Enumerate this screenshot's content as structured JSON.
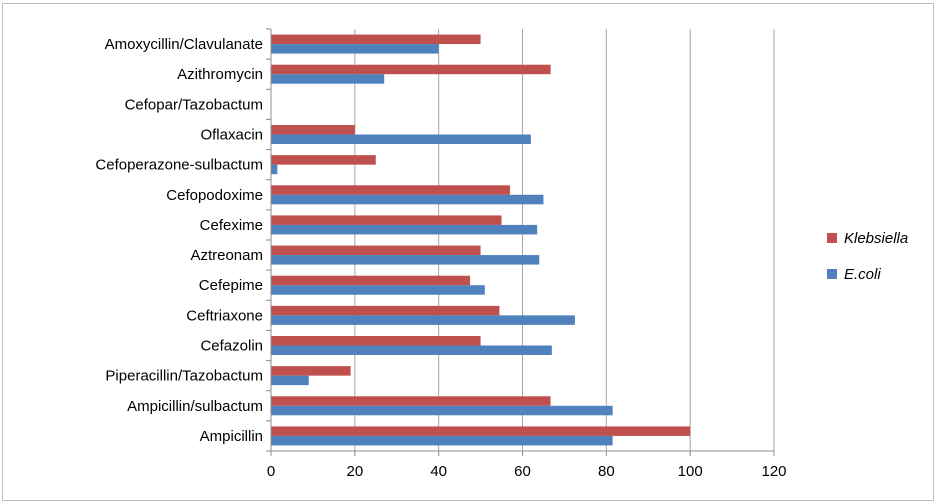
{
  "chart_data": {
    "type": "bar",
    "orientation": "horizontal",
    "title": "",
    "xlabel": "",
    "ylabel": "",
    "xlim": [
      0,
      120
    ],
    "x_ticks": [
      0,
      20,
      40,
      60,
      80,
      100,
      120
    ],
    "grid": "vertical",
    "legend_position": "right",
    "categories": [
      "Amoxycillin/Clavulanate",
      "Azithromycin",
      "Cefopar/Tazobactum",
      "Oflaxacin",
      "Cefoperazone-sulbactum",
      "Cefopodoxime",
      "Cefexime",
      "Aztreonam",
      "Cefepime",
      "Ceftriaxone",
      "Cefazolin",
      "Piperacillin/Tazobactum",
      "Ampicillin/sulbactum",
      "Ampicillin"
    ],
    "series": [
      {
        "name": "Klebsiella",
        "color": "#c0504d",
        "values": [
          50,
          66.7,
          0,
          20,
          25,
          57,
          55,
          50,
          47.5,
          54.5,
          50,
          19,
          66.7,
          100
        ]
      },
      {
        "name": "E.coli",
        "color": "#4f81bd",
        "values": [
          40,
          27,
          0,
          62,
          1.5,
          65,
          63.5,
          64,
          51,
          72.5,
          67,
          9,
          81.5,
          81.5
        ]
      }
    ]
  }
}
